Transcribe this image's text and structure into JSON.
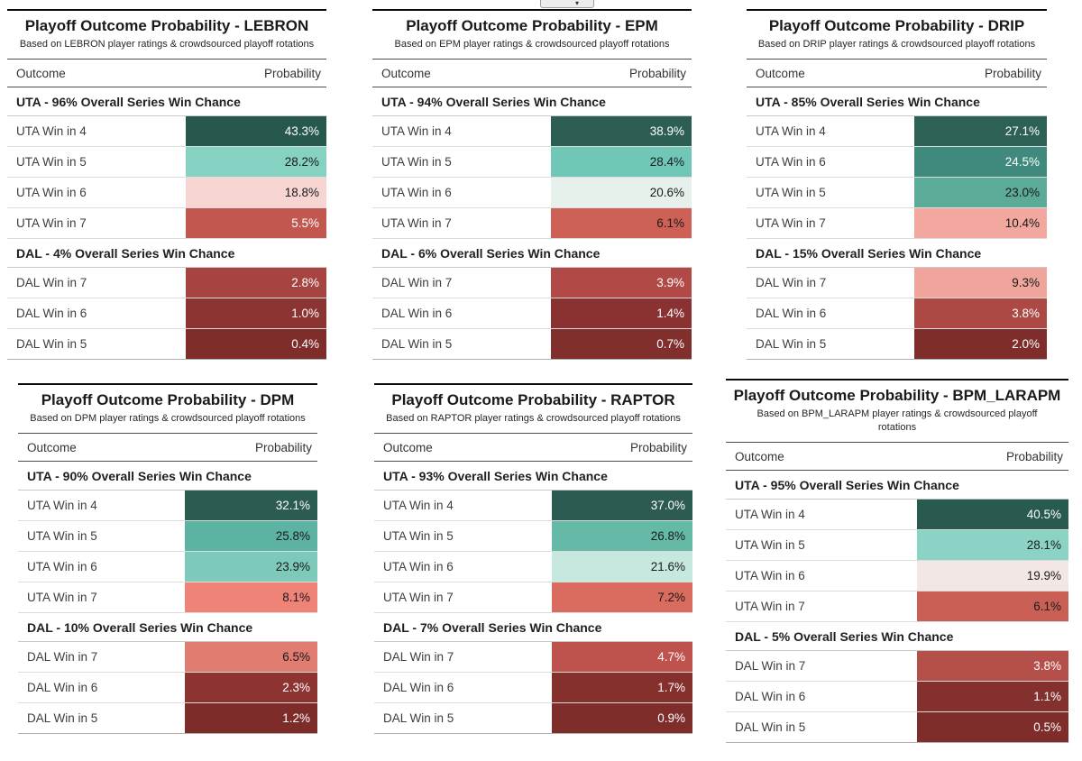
{
  "page_background": "#ffffff",
  "top_button": {
    "glyph": "▾"
  },
  "chart_data": [
    {
      "type": "table",
      "metric": "LEBRON",
      "title": "Playoff Outcome Probability - LEBRON",
      "subtitle": "Based on LEBRON player ratings & crowdsourced playoff rotations",
      "columns": [
        "Outcome",
        "Probability"
      ],
      "sections": [
        {
          "header": "UTA - 96% Overall Series Win Chance",
          "rows": [
            {
              "label": "UTA Win in 4",
              "value": 43.3,
              "display": "43.3%",
              "bg": "#27584e",
              "fg": "#ffffff"
            },
            {
              "label": "UTA Win in 5",
              "value": 28.2,
              "display": "28.2%",
              "bg": "#85d2c2",
              "fg": "#1a1a1a"
            },
            {
              "label": "UTA Win in 6",
              "value": 18.8,
              "display": "18.8%",
              "bg": "#f7d5d3",
              "fg": "#1a1a1a"
            },
            {
              "label": "UTA Win in 7",
              "value": 5.5,
              "display": "5.5%",
              "bg": "#c25750",
              "fg": "#ffffff"
            }
          ]
        },
        {
          "header": "DAL - 4% Overall Series Win Chance",
          "rows": [
            {
              "label": "DAL Win in 7",
              "value": 2.8,
              "display": "2.8%",
              "bg": "#a64442",
              "fg": "#ffffff"
            },
            {
              "label": "DAL Win in 6",
              "value": 1.0,
              "display": "1.0%",
              "bg": "#8b3431",
              "fg": "#ffffff"
            },
            {
              "label": "DAL Win in 5",
              "value": 0.4,
              "display": "0.4%",
              "bg": "#7e2d2b",
              "fg": "#ffffff"
            }
          ]
        }
      ]
    },
    {
      "type": "table",
      "metric": "EPM",
      "title": "Playoff Outcome Probability - EPM",
      "subtitle": "Based on EPM player ratings & crowdsourced playoff rotations",
      "columns": [
        "Outcome",
        "Probability"
      ],
      "sections": [
        {
          "header": "UTA - 94% Overall Series Win Chance",
          "rows": [
            {
              "label": "UTA Win in 4",
              "value": 38.9,
              "display": "38.9%",
              "bg": "#2c5e53",
              "fg": "#ffffff"
            },
            {
              "label": "UTA Win in 5",
              "value": 28.4,
              "display": "28.4%",
              "bg": "#70c7b6",
              "fg": "#1a1a1a"
            },
            {
              "label": "UTA Win in 6",
              "value": 20.6,
              "display": "20.6%",
              "bg": "#e7f1ec",
              "fg": "#1a1a1a"
            },
            {
              "label": "UTA Win in 7",
              "value": 6.1,
              "display": "6.1%",
              "bg": "#cd6156",
              "fg": "#1a1a1a"
            }
          ]
        },
        {
          "header": "DAL - 6% Overall Series Win Chance",
          "rows": [
            {
              "label": "DAL Win in 7",
              "value": 3.9,
              "display": "3.9%",
              "bg": "#b14a46",
              "fg": "#ffffff"
            },
            {
              "label": "DAL Win in 6",
              "value": 1.4,
              "display": "1.4%",
              "bg": "#893231",
              "fg": "#ffffff"
            },
            {
              "label": "DAL Win in 5",
              "value": 0.7,
              "display": "0.7%",
              "bg": "#812f2d",
              "fg": "#ffffff"
            }
          ]
        }
      ]
    },
    {
      "type": "table",
      "metric": "DRIP",
      "title": "Playoff Outcome Probability - DRIP",
      "subtitle": "Based on DRIP player ratings & crowdsourced playoff rotations",
      "columns": [
        "Outcome",
        "Probability"
      ],
      "sections": [
        {
          "header": "UTA - 85% Overall Series Win Chance",
          "rows": [
            {
              "label": "UTA Win in 4",
              "value": 27.1,
              "display": "27.1%",
              "bg": "#2e6156",
              "fg": "#ffffff"
            },
            {
              "label": "UTA Win in 6",
              "value": 24.5,
              "display": "24.5%",
              "bg": "#3f8a7c",
              "fg": "#ffffff"
            },
            {
              "label": "UTA Win in 5",
              "value": 23.0,
              "display": "23.0%",
              "bg": "#5cab99",
              "fg": "#1a1a1a"
            },
            {
              "label": "UTA Win in 7",
              "value": 10.4,
              "display": "10.4%",
              "bg": "#f2a89f",
              "fg": "#1a1a1a"
            }
          ]
        },
        {
          "header": "DAL - 15% Overall Series Win Chance",
          "rows": [
            {
              "label": "DAL Win in 7",
              "value": 9.3,
              "display": "9.3%",
              "bg": "#f0a59c",
              "fg": "#1a1a1a"
            },
            {
              "label": "DAL Win in 6",
              "value": 3.8,
              "display": "3.8%",
              "bg": "#ac4945",
              "fg": "#ffffff"
            },
            {
              "label": "DAL Win in 5",
              "value": 2.0,
              "display": "2.0%",
              "bg": "#7f2d2b",
              "fg": "#ffffff"
            }
          ]
        }
      ]
    },
    {
      "type": "table",
      "metric": "DPM",
      "title": "Playoff Outcome Probability - DPM",
      "subtitle": "Based on DPM player ratings & crowdsourced playoff rotations",
      "columns": [
        "Outcome",
        "Probability"
      ],
      "sections": [
        {
          "header": "UTA - 90% Overall Series Win Chance",
          "rows": [
            {
              "label": "UTA Win in 4",
              "value": 32.1,
              "display": "32.1%",
              "bg": "#2b5c52",
              "fg": "#ffffff"
            },
            {
              "label": "UTA Win in 5",
              "value": 25.8,
              "display": "25.8%",
              "bg": "#5db3a1",
              "fg": "#1a1a1a"
            },
            {
              "label": "UTA Win in 6",
              "value": 23.9,
              "display": "23.9%",
              "bg": "#7ecaba",
              "fg": "#1a1a1a"
            },
            {
              "label": "UTA Win in 7",
              "value": 8.1,
              "display": "8.1%",
              "bg": "#ef8377",
              "fg": "#1a1a1a"
            }
          ]
        },
        {
          "header": "DAL - 10% Overall Series Win Chance",
          "rows": [
            {
              "label": "DAL Win in 7",
              "value": 6.5,
              "display": "6.5%",
              "bg": "#e07c70",
              "fg": "#1a1a1a"
            },
            {
              "label": "DAL Win in 6",
              "value": 2.3,
              "display": "2.3%",
              "bg": "#8d3431",
              "fg": "#ffffff"
            },
            {
              "label": "DAL Win in 5",
              "value": 1.2,
              "display": "1.2%",
              "bg": "#7d2c2a",
              "fg": "#ffffff"
            }
          ]
        }
      ]
    },
    {
      "type": "table",
      "metric": "RAPTOR",
      "title": "Playoff Outcome Probability - RAPTOR",
      "subtitle": "Based on RAPTOR player ratings & crowdsourced playoff rotations",
      "columns": [
        "Outcome",
        "Probability"
      ],
      "sections": [
        {
          "header": "UTA - 93% Overall Series Win Chance",
          "rows": [
            {
              "label": "UTA Win in 4",
              "value": 37.0,
              "display": "37.0%",
              "bg": "#2c5b51",
              "fg": "#ffffff"
            },
            {
              "label": "UTA Win in 5",
              "value": 26.8,
              "display": "26.8%",
              "bg": "#64b9a7",
              "fg": "#1a1a1a"
            },
            {
              "label": "UTA Win in 6",
              "value": 21.6,
              "display": "21.6%",
              "bg": "#c6e8de",
              "fg": "#1a1a1a"
            },
            {
              "label": "UTA Win in 7",
              "value": 7.2,
              "display": "7.2%",
              "bg": "#d96b5f",
              "fg": "#1a1a1a"
            }
          ]
        },
        {
          "header": "DAL - 7% Overall Series Win Chance",
          "rows": [
            {
              "label": "DAL Win in 7",
              "value": 4.7,
              "display": "4.7%",
              "bg": "#bd534c",
              "fg": "#ffffff"
            },
            {
              "label": "DAL Win in 6",
              "value": 1.7,
              "display": "1.7%",
              "bg": "#86302e",
              "fg": "#ffffff"
            },
            {
              "label": "DAL Win in 5",
              "value": 0.9,
              "display": "0.9%",
              "bg": "#7e2d2b",
              "fg": "#ffffff"
            }
          ]
        }
      ]
    },
    {
      "type": "table",
      "metric": "BPM_LARAPM",
      "title": "Playoff Outcome Probability - BPM_LARAPM",
      "subtitle": "Based on BPM_LARAPM player ratings & crowdsourced playoff rotations",
      "columns": [
        "Outcome",
        "Probability"
      ],
      "sections": [
        {
          "header": "UTA - 95% Overall Series Win Chance",
          "rows": [
            {
              "label": "UTA Win in 4",
              "value": 40.5,
              "display": "40.5%",
              "bg": "#295a50",
              "fg": "#ffffff"
            },
            {
              "label": "UTA Win in 5",
              "value": 28.1,
              "display": "28.1%",
              "bg": "#8bd3c4",
              "fg": "#1a1a1a"
            },
            {
              "label": "UTA Win in 6",
              "value": 19.9,
              "display": "19.9%",
              "bg": "#f2e7e5",
              "fg": "#1a1a1a"
            },
            {
              "label": "UTA Win in 7",
              "value": 6.1,
              "display": "6.1%",
              "bg": "#c95f55",
              "fg": "#1a1a1a"
            }
          ]
        },
        {
          "header": "DAL - 5% Overall Series Win Chance",
          "rows": [
            {
              "label": "DAL Win in 7",
              "value": 3.8,
              "display": "3.8%",
              "bg": "#b54f4a",
              "fg": "#ffffff"
            },
            {
              "label": "DAL Win in 6",
              "value": 1.1,
              "display": "1.1%",
              "bg": "#83302e",
              "fg": "#ffffff"
            },
            {
              "label": "DAL Win in 5",
              "value": 0.5,
              "display": "0.5%",
              "bg": "#7e2d2b",
              "fg": "#ffffff"
            }
          ]
        }
      ]
    }
  ]
}
